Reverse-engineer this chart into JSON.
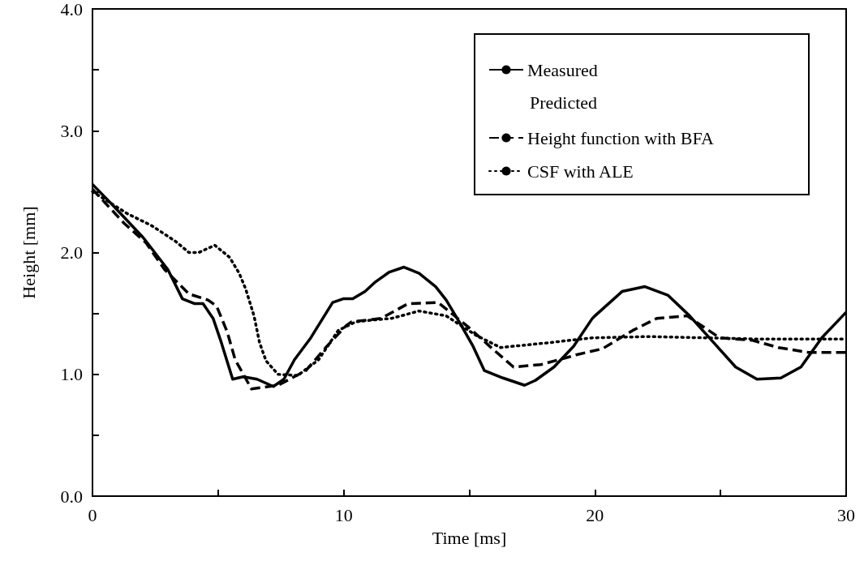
{
  "chart_data": {
    "type": "line",
    "xlabel": "Time [ms]",
    "ylabel": "Height [mm]",
    "xlim": [
      0,
      30
    ],
    "ylim": [
      0,
      4
    ],
    "xticks": [
      0,
      {
        "value": 5,
        "label": null
      },
      10,
      {
        "value": 15,
        "label": null
      },
      20,
      {
        "value": 25,
        "label": null
      },
      30
    ],
    "yticks": [
      {
        "value": 0,
        "label": "0.0"
      },
      {
        "value": 0.5,
        "label": null
      },
      {
        "value": 1,
        "label": "1.0"
      },
      {
        "value": 1.5,
        "label": null
      },
      {
        "value": 2,
        "label": "2.0"
      },
      {
        "value": 2.5,
        "label": null
      },
      {
        "value": 3,
        "label": "3.0"
      },
      {
        "value": 3.5,
        "label": null
      },
      {
        "value": 4,
        "label": "4.0"
      }
    ],
    "grid": false,
    "legend": "top right",
    "marker": "none",
    "annotations": [
      "Predicted"
    ],
    "series": [
      {
        "name": "Measured",
        "color": "#000000",
        "line_style": "solid",
        "x": [
          0,
          0.94,
          2.03,
          3.0,
          3.58,
          4.07,
          4.4,
          4.8,
          5.13,
          5.58,
          6.0,
          6.55,
          7.2,
          7.62,
          8.04,
          8.69,
          9.56,
          9.98,
          10.36,
          10.85,
          11.27,
          11.82,
          12.4,
          13.0,
          13.66,
          14.08,
          14.6,
          15.15,
          15.6,
          16.34,
          17.2,
          17.63,
          18.37,
          19.15,
          19.9,
          20.0,
          21.08,
          21.99,
          22.9,
          23.77,
          24.64,
          25.6,
          26.45,
          27.4,
          28.2,
          29.03,
          30
        ],
        "values": [
          2.56,
          2.36,
          2.12,
          1.86,
          1.62,
          1.58,
          1.58,
          1.46,
          1.26,
          0.96,
          0.98,
          0.96,
          0.9,
          0.96,
          1.12,
          1.3,
          1.59,
          1.62,
          1.62,
          1.68,
          1.76,
          1.84,
          1.88,
          1.83,
          1.72,
          1.61,
          1.43,
          1.23,
          1.03,
          0.97,
          0.91,
          0.95,
          1.06,
          1.23,
          1.46,
          1.48,
          1.68,
          1.72,
          1.65,
          1.48,
          1.28,
          1.06,
          0.96,
          0.97,
          1.06,
          1.3,
          1.51
        ]
      },
      {
        "name": "Height function with BFA",
        "color": "#000000",
        "line_style": "dashed",
        "x": [
          0,
          1.26,
          2.13,
          2.87,
          3.84,
          4.6,
          4.94,
          5.36,
          5.68,
          6.33,
          7.39,
          8.49,
          9.33,
          10.1,
          10.3,
          11.5,
          12.56,
          13.76,
          14.95,
          15.92,
          16.76,
          17.85,
          18.92,
          19.25,
          20.3,
          21.5,
          22.47,
          23.67,
          24.96,
          26.25,
          27.3,
          28.5,
          30
        ],
        "values": [
          2.52,
          2.24,
          2.08,
          1.86,
          1.66,
          1.61,
          1.56,
          1.35,
          1.12,
          0.88,
          0.91,
          1.03,
          1.23,
          1.4,
          1.43,
          1.46,
          1.58,
          1.59,
          1.39,
          1.21,
          1.06,
          1.08,
          1.14,
          1.16,
          1.21,
          1.36,
          1.46,
          1.48,
          1.3,
          1.28,
          1.22,
          1.18,
          1.18
        ]
      },
      {
        "name": "CSF with ALE",
        "color": "#000000",
        "line_style": "dotted",
        "x": [
          0,
          1.38,
          2.36,
          3.32,
          3.84,
          4.23,
          4.87,
          5.46,
          5.84,
          6.1,
          6.43,
          6.65,
          6.91,
          7.39,
          8.17,
          9.0,
          9.78,
          10.46,
          10.85,
          11.92,
          13.0,
          14.08,
          15.27,
          16.24,
          18.18,
          19.9,
          20.0,
          22.15,
          24.3,
          26.45,
          30
        ],
        "values": [
          2.5,
          2.32,
          2.22,
          2.09,
          2.0,
          2.0,
          2.06,
          1.96,
          1.83,
          1.7,
          1.48,
          1.26,
          1.11,
          1.0,
          0.99,
          1.12,
          1.36,
          1.43,
          1.44,
          1.46,
          1.52,
          1.48,
          1.32,
          1.22,
          1.26,
          1.3,
          1.3,
          1.31,
          1.3,
          1.29,
          1.29
        ]
      }
    ]
  }
}
